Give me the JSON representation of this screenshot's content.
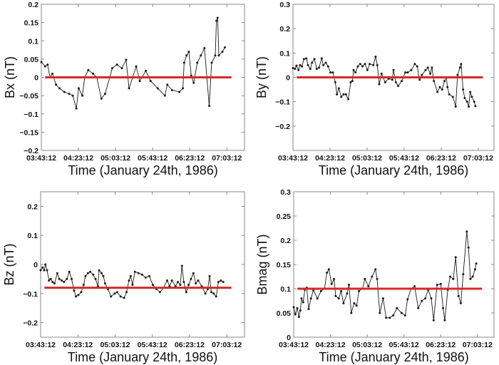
{
  "chart_data": [
    {
      "type": "line",
      "title": "",
      "xlabel": "Time (January 24th, 1986)",
      "ylabel": "Bx (nT)",
      "xunit": "minutes after 03:43:12",
      "xlim": [
        0,
        219
      ],
      "ylim": [
        -0.2,
        0.2
      ],
      "xticks": [
        0,
        40,
        80,
        120,
        160,
        200
      ],
      "xtick_labels": [
        "03:43:12",
        "04:23:12",
        "05:03:12",
        "05:43:12",
        "06:23:12",
        "07:03:12"
      ],
      "yticks": [
        -0.2,
        -0.15,
        -0.1,
        -0.05,
        0,
        0.05,
        0.1,
        0.15,
        0.2
      ],
      "ytick_labels": [
        "−0.2",
        "−0.15",
        "−0.1",
        "−0.05",
        "0",
        "0.05",
        "0.1",
        "0.15",
        "0.2"
      ],
      "reference": {
        "value": 0,
        "x": [
          4,
          205
        ]
      },
      "x": [
        0,
        4.1,
        6.7,
        9.3,
        11.9,
        15.8,
        19.6,
        24.8,
        30,
        33.8,
        37.7,
        40.3,
        44.2,
        46.7,
        50.6,
        55.8,
        59.6,
        64.8,
        68.7,
        73.8,
        76.4,
        81.6,
        86.8,
        91.4,
        94.5,
        98.4,
        102.2,
        106.1,
        112.6,
        117.7,
        125.5,
        133.2,
        135.8,
        141,
        148.7,
        152.6,
        153.9,
        156.5,
        159,
        161.6,
        164.2,
        168.1,
        172,
        175.8,
        178.4,
        181,
        183.6,
        187.5,
        188.7,
        190,
        191.3,
        195.2,
        197.8
      ],
      "values": [
        0.042,
        0.03,
        0.035,
        0.0,
        0.01,
        -0.02,
        -0.03,
        -0.04,
        -0.045,
        -0.05,
        -0.085,
        -0.03,
        -0.05,
        0.0,
        0.02,
        0.01,
        0.0,
        -0.058,
        -0.045,
        0.0,
        0.025,
        0.035,
        0.025,
        0.048,
        -0.03,
        0.0,
        0.03,
        -0.01,
        0.018,
        -0.01,
        -0.03,
        -0.05,
        -0.02,
        -0.035,
        -0.04,
        -0.03,
        0.04,
        0.06,
        0.07,
        0.005,
        -0.015,
        0.04,
        0.06,
        0.08,
        0.0,
        -0.078,
        0.04,
        0.06,
        0.155,
        0.163,
        0.06,
        0.07,
        0.082
      ]
    },
    {
      "type": "line",
      "title": "",
      "xlabel": "Time (January 24th, 1986)",
      "ylabel": "By (nT)",
      "xunit": "minutes after 03:43:12",
      "xlim": [
        0,
        217
      ],
      "ylim": [
        -0.3,
        0.3
      ],
      "xticks": [
        0,
        40,
        80,
        120,
        160,
        200
      ],
      "xtick_labels": [
        "03:43:12",
        "04:23:12",
        "05:03:12",
        "05:43:12",
        "06:23:12",
        "07:03:12"
      ],
      "yticks": [
        -0.2,
        -0.1,
        0,
        0.1,
        0.2,
        0.3
      ],
      "ytick_labels": [
        "−0.2",
        "−0.1",
        "0",
        "0.1",
        "0.2",
        "0.3"
      ],
      "reference": {
        "value": 0,
        "x": [
          4,
          205
        ]
      },
      "x": [
        0,
        2.1,
        3.8,
        5.9,
        7.7,
        9.7,
        11.8,
        14.4,
        16.2,
        18.7,
        20.5,
        23.1,
        25.6,
        28.2,
        31,
        32.8,
        35.4,
        37.9,
        40.5,
        43.1,
        45.6,
        47.4,
        49.5,
        52.1,
        54.6,
        57.2,
        59.7,
        62.3,
        64.1,
        65.4,
        67.4,
        70,
        72.6,
        75.1,
        77.7,
        80.3,
        82.8,
        86.7,
        89.2,
        91,
        93.1,
        95.6,
        99.5,
        103.3,
        107.2,
        108.5,
        111,
        113.6,
        117.4,
        121.3,
        123.8,
        127.7,
        131.5,
        134.1,
        136.7,
        139.2,
        143.1,
        145.6,
        148.2,
        150,
        152.1,
        155.9,
        158.5,
        161,
        163.6,
        165.6,
        166.7,
        168.7,
        172.6,
        175.6,
        177.7,
        180.3,
        181.5,
        183.6,
        185.4,
        187.9,
        189.7,
        191.3,
        193.1,
        195.6,
        196.9
      ],
      "values": [
        0.038,
        0.035,
        0.048,
        0.03,
        0.05,
        0.045,
        0.075,
        0.078,
        0.05,
        0.035,
        0.06,
        0.075,
        0.035,
        0.04,
        0.078,
        0.05,
        0.06,
        0.045,
        0.02,
        0.02,
        -0.02,
        -0.07,
        -0.045,
        -0.08,
        -0.07,
        -0.07,
        -0.09,
        -0.02,
        -0.015,
        0.03,
        0.02,
        0.045,
        0.055,
        0.045,
        0.055,
        0.03,
        0.055,
        0.05,
        0.085,
        0.05,
        -0.028,
        0.015,
        -0.02,
        -0.005,
        -0.01,
        0.03,
        -0.02,
        -0.035,
        -0.015,
        0.02,
        0.02,
        0.03,
        0.055,
        0.045,
        -0.01,
        0.01,
        0.03,
        0.04,
        0.015,
        0.04,
        -0.015,
        -0.06,
        -0.04,
        -0.05,
        -0.015,
        0.0,
        -0.04,
        -0.07,
        -0.08,
        -0.12,
        0.01,
        0.04,
        0.055,
        -0.05,
        -0.085,
        -0.1,
        -0.12,
        -0.06,
        -0.08,
        -0.1,
        -0.118
      ]
    },
    {
      "type": "line",
      "title": "",
      "xlabel": "Time (January 24th, 1986)",
      "ylabel": "Bz (nT)",
      "xunit": "minutes after 03:43:12",
      "xlim": [
        0,
        219
      ],
      "ylim": [
        -0.25,
        0.25
      ],
      "xticks": [
        0,
        40,
        80,
        120,
        160,
        200
      ],
      "xtick_labels": [
        "03:43:12",
        "04:23:12",
        "05:03:12",
        "05:43:12",
        "06:23:12",
        "07:03:12"
      ],
      "yticks": [
        -0.2,
        -0.1,
        0,
        0.1,
        0.2
      ],
      "ytick_labels": [
        "−0.2",
        "−0.1",
        "0",
        "0.1",
        "0.2"
      ],
      "reference": {
        "value": -0.08,
        "x": [
          4,
          205
        ]
      },
      "x": [
        0,
        2.1,
        3.8,
        5.1,
        6.9,
        9,
        10.8,
        12.8,
        14.9,
        17.9,
        20,
        22.6,
        25.1,
        28.2,
        30.8,
        33.3,
        35.9,
        37.9,
        40.5,
        43.6,
        46.2,
        48.2,
        50.8,
        53.3,
        56.4,
        59,
        61.5,
        62.8,
        65.4,
        67.4,
        69.2,
        72.3,
        75.6,
        79.5,
        82.1,
        85.9,
        89.7,
        92.3,
        94.9,
        96.7,
        98.7,
        101.3,
        105.1,
        109,
        112.8,
        116.7,
        120.5,
        124.4,
        128.2,
        132.1,
        135.9,
        138.5,
        141,
        144.9,
        147.4,
        150,
        151.8,
        153.8,
        156.4,
        159,
        161.5,
        164.1,
        166.7,
        169.2,
        173.1,
        176.9,
        179.5,
        181.5,
        183.3,
        185.9,
        188.5,
        191,
        193.6,
        196.2
      ],
      "values": [
        -0.02,
        -0.01,
        -0.02,
        0.0,
        -0.02,
        -0.055,
        -0.05,
        -0.06,
        -0.065,
        -0.03,
        -0.05,
        -0.055,
        -0.06,
        -0.05,
        -0.025,
        -0.05,
        -0.09,
        -0.11,
        -0.105,
        -0.095,
        -0.07,
        -0.04,
        -0.03,
        -0.025,
        -0.035,
        -0.05,
        -0.075,
        -0.02,
        -0.03,
        -0.04,
        -0.065,
        -0.085,
        -0.11,
        -0.1,
        -0.095,
        -0.11,
        -0.115,
        -0.095,
        -0.055,
        -0.04,
        -0.07,
        -0.025,
        -0.03,
        -0.035,
        -0.045,
        -0.04,
        -0.07,
        -0.085,
        -0.095,
        -0.08,
        -0.055,
        -0.075,
        -0.055,
        -0.075,
        -0.06,
        -0.07,
        -0.005,
        -0.06,
        -0.095,
        -0.07,
        -0.05,
        -0.03,
        -0.065,
        -0.055,
        -0.075,
        -0.1,
        -0.085,
        -0.04,
        -0.095,
        -0.1,
        -0.11,
        -0.06,
        -0.055,
        -0.06
      ]
    },
    {
      "type": "line",
      "title": "",
      "xlabel": "Time (January 24th, 1986)",
      "ylabel": "Bmag (nT)",
      "xunit": "minutes after 03:43:12",
      "xlim": [
        0,
        218
      ],
      "ylim": [
        0,
        0.3
      ],
      "xticks": [
        0,
        40,
        80,
        120,
        160,
        200
      ],
      "xtick_labels": [
        "03:43:12",
        "04:23:12",
        "05:03:12",
        "05:43:12",
        "06:23:12",
        "07:03:12"
      ],
      "yticks": [
        0,
        0.05,
        0.1,
        0.15,
        0.2,
        0.25,
        0.3
      ],
      "ytick_labels": [
        "0",
        "0.05",
        "0.1",
        "0.15",
        "0.2",
        "0.25",
        "0.3"
      ],
      "reference": {
        "value": 0.1,
        "x": [
          4,
          205
        ]
      },
      "x": [
        0,
        1.8,
        3.9,
        5.7,
        7.2,
        8.5,
        10.3,
        12.1,
        14.2,
        16.3,
        18.8,
        21.4,
        25.8,
        29.7,
        33.5,
        36.1,
        38.2,
        41.3,
        43.9,
        45.7,
        49,
        51.6,
        54.2,
        58.1,
        60.1,
        62.7,
        65.8,
        68.4,
        71,
        74.8,
        77.4,
        81.3,
        85.2,
        89,
        90.8,
        93.7,
        97.3,
        100.6,
        104.5,
        108.4,
        112.3,
        117.4,
        121.3,
        123.9,
        127.7,
        131.6,
        135.5,
        139.4,
        143.2,
        146.3,
        149.7,
        152.3,
        156.1,
        160,
        162.6,
        164.4,
        167.7,
        170.3,
        173.7,
        176.3,
        179.4,
        181.9,
        184.5,
        188.4,
        190.2,
        192.3,
        194.8,
        197.4,
        198.7
      ],
      "values": [
        0.062,
        0.047,
        0.06,
        0.042,
        0.055,
        0.08,
        0.072,
        0.098,
        0.102,
        0.058,
        0.08,
        0.097,
        0.08,
        0.095,
        0.1,
        0.133,
        0.14,
        0.11,
        0.12,
        0.085,
        0.08,
        0.095,
        0.07,
        0.09,
        0.108,
        0.05,
        0.07,
        0.065,
        0.095,
        0.1,
        0.12,
        0.105,
        0.125,
        0.14,
        0.12,
        0.05,
        0.08,
        0.04,
        0.04,
        0.045,
        0.06,
        0.05,
        0.045,
        0.078,
        0.1,
        0.105,
        0.06,
        0.075,
        0.08,
        0.098,
        0.08,
        0.035,
        0.108,
        0.11,
        0.06,
        0.035,
        0.098,
        0.125,
        0.12,
        0.165,
        0.085,
        0.07,
        0.13,
        0.218,
        0.185,
        0.12,
        0.125,
        0.14,
        0.152
      ]
    }
  ],
  "colors": {
    "series": "#1a1a1a",
    "reference": "#d42a2a",
    "axes": "#888888"
  }
}
